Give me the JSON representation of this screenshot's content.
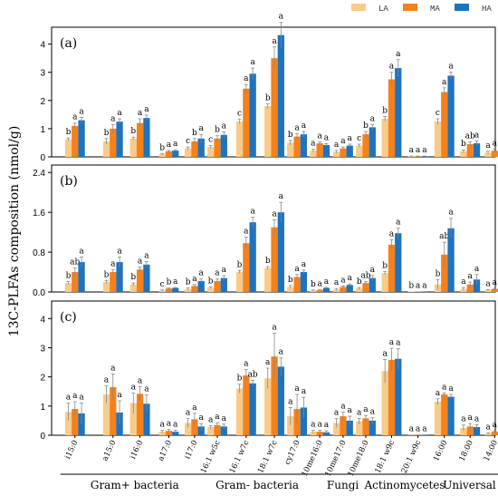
{
  "chart_data": {
    "type": "bar",
    "ylabel": "13C-PLFAs composition (nmol/g)",
    "categories": [
      "i15:0",
      "a15:0",
      "i16:0",
      "a17:0",
      "i17:0",
      "16:1 w5c",
      "16:1 w7c",
      "18:1 w7c",
      "cy17:0",
      "10me16:0",
      "10me17:0",
      "10me18:0",
      "18:1 w9c",
      "20:1 w9c",
      "16:00",
      "18:00",
      "14:00"
    ],
    "groups": [
      {
        "label": "Gram+ bacteria",
        "from": 0,
        "to": 4
      },
      {
        "label": "Gram- bacteria",
        "from": 5,
        "to": 8
      },
      {
        "label": "Fungi",
        "from": 9,
        "to": 11
      },
      {
        "label": "Actinomycetes",
        "from": 12,
        "to": 13
      },
      {
        "label": "Universal",
        "from": 14,
        "to": 16
      }
    ],
    "series": [
      {
        "name": "LA",
        "color": "#f8cb8a"
      },
      {
        "name": "MA",
        "color": "#f4811c"
      },
      {
        "name": "HA",
        "color": "#1e73be"
      }
    ],
    "panels": [
      {
        "label": "(a)",
        "ylim": [
          0,
          4.6
        ],
        "yticks": [
          0,
          1,
          2,
          3,
          4
        ],
        "tick_labels": [
          "0",
          "1",
          "2",
          "3",
          "4"
        ],
        "values": [
          [
            0.62,
            1.1,
            1.3
          ],
          [
            0.55,
            1.0,
            1.25
          ],
          [
            0.65,
            1.2,
            1.38
          ],
          [
            0.1,
            0.2,
            0.22
          ],
          [
            0.3,
            0.55,
            0.65
          ],
          [
            0.35,
            0.65,
            0.78
          ],
          [
            1.25,
            2.42,
            2.95
          ],
          [
            1.8,
            3.5,
            4.32
          ],
          [
            0.5,
            0.72,
            0.8
          ],
          [
            0.22,
            0.48,
            0.42
          ],
          [
            0.18,
            0.3,
            0.4
          ],
          [
            0.4,
            0.8,
            1.05
          ],
          [
            1.35,
            2.75,
            3.15
          ],
          [
            0.02,
            0.02,
            0.02
          ],
          [
            1.25,
            2.3,
            2.88
          ],
          [
            0.2,
            0.45,
            0.48
          ],
          [
            0.15,
            0.22,
            0.22
          ]
        ],
        "errors": [
          [
            0.05,
            0.1,
            0.1
          ],
          [
            0.1,
            0.15,
            0.1
          ],
          [
            0.05,
            0.15,
            0.1
          ],
          [
            0.02,
            0.03,
            0.03
          ],
          [
            0.05,
            0.1,
            0.15
          ],
          [
            0.05,
            0.1,
            0.1
          ],
          [
            0.08,
            0.15,
            0.2
          ],
          [
            0.08,
            0.4,
            0.45
          ],
          [
            0.08,
            0.1,
            0.1
          ],
          [
            0.05,
            0.05,
            0.05
          ],
          [
            0.05,
            0.05,
            0.05
          ],
          [
            0.05,
            0.1,
            0.1
          ],
          [
            0.08,
            0.25,
            0.3
          ],
          [
            0.01,
            0.01,
            0.01
          ],
          [
            0.1,
            0.15,
            0.12
          ],
          [
            0.05,
            0.08,
            0.08
          ],
          [
            0.05,
            0.05,
            0.05
          ]
        ],
        "letters": [
          [
            "b",
            "a",
            "a"
          ],
          [
            "b",
            "a",
            "a"
          ],
          [
            "b",
            "a",
            "a"
          ],
          [
            "b",
            "a",
            "a"
          ],
          [
            "c",
            "b",
            "a"
          ],
          [
            "c",
            "b",
            "a"
          ],
          [
            "c",
            "a",
            "a"
          ],
          [
            "b",
            "a",
            "a"
          ],
          [
            "b",
            "a",
            "a"
          ],
          [
            "a",
            "a",
            "a"
          ],
          [
            "a",
            "a",
            "a"
          ],
          [
            "c",
            "b",
            "a"
          ],
          [
            "b",
            "a",
            "a"
          ],
          [
            "a",
            "a",
            "a"
          ],
          [
            "c",
            "a",
            "a"
          ],
          [
            "b",
            "ab",
            "a"
          ],
          [
            "a",
            "a",
            "a"
          ]
        ]
      },
      {
        "label": "(b)",
        "ylim": [
          0,
          2.55
        ],
        "yticks": [
          0,
          0.8,
          1.6,
          2.4
        ],
        "tick_labels": [
          "0.0",
          "0.8",
          "1.6",
          "2.4"
        ],
        "values": [
          [
            0.18,
            0.4,
            0.6
          ],
          [
            0.2,
            0.4,
            0.6
          ],
          [
            0.15,
            0.45,
            0.55
          ],
          [
            0.03,
            0.07,
            0.08
          ],
          [
            0.06,
            0.12,
            0.22
          ],
          [
            0.08,
            0.22,
            0.28
          ],
          [
            0.4,
            0.98,
            1.4
          ],
          [
            0.48,
            1.3,
            1.6
          ],
          [
            0.1,
            0.3,
            0.4
          ],
          [
            0.03,
            0.04,
            0.08
          ],
          [
            0.05,
            0.1,
            0.14
          ],
          [
            0.07,
            0.18,
            0.28
          ],
          [
            0.38,
            0.95,
            1.18
          ],
          [
            0.01,
            0.01,
            0.01
          ],
          [
            0.15,
            0.75,
            1.28
          ],
          [
            0.06,
            0.15,
            0.25
          ],
          [
            0.04,
            0.06,
            0.06
          ]
        ],
        "errors": [
          [
            0.03,
            0.08,
            0.1
          ],
          [
            0.03,
            0.05,
            0.1
          ],
          [
            0.03,
            0.05,
            0.06
          ],
          [
            0.01,
            0.01,
            0.01
          ],
          [
            0.02,
            0.03,
            0.04
          ],
          [
            0.02,
            0.04,
            0.05
          ],
          [
            0.03,
            0.12,
            0.1
          ],
          [
            0.03,
            0.15,
            0.2
          ],
          [
            0.03,
            0.05,
            0.04
          ],
          [
            0.01,
            0.01,
            0.01
          ],
          [
            0.02,
            0.02,
            0.02
          ],
          [
            0.02,
            0.03,
            0.05
          ],
          [
            0.03,
            0.1,
            0.1
          ],
          [
            0.0,
            0.0,
            0.0
          ],
          [
            0.1,
            0.25,
            0.2
          ],
          [
            0.03,
            0.05,
            0.1
          ],
          [
            0.01,
            0.01,
            0.01
          ]
        ],
        "letters": [
          [
            "b",
            "ab",
            "a"
          ],
          [
            "b",
            "a",
            "a"
          ],
          [
            "b",
            "a",
            "a"
          ],
          [
            "c",
            "b",
            "a"
          ],
          [
            "b",
            "a",
            "a"
          ],
          [
            "b",
            "a",
            "a"
          ],
          [
            "b",
            "a",
            "a"
          ],
          [
            "b",
            "a",
            "a"
          ],
          [
            "b",
            "a",
            "a"
          ],
          [
            "b",
            "a",
            "a"
          ],
          [
            "a",
            "a",
            "a"
          ],
          [
            "b",
            "ab",
            "a"
          ],
          [
            "b",
            "a",
            "a"
          ],
          [
            "b",
            "a",
            "a"
          ],
          [
            "b",
            "ab",
            "a"
          ],
          [
            "a",
            "a",
            "a"
          ],
          [
            "a",
            "a",
            "a"
          ]
        ]
      },
      {
        "label": "(c)",
        "ylim": [
          0,
          4.6
        ],
        "yticks": [
          0,
          1,
          2,
          3,
          4
        ],
        "tick_labels": [
          "0",
          "1",
          "2",
          "3",
          "4"
        ],
        "values": [
          [
            0.8,
            0.9,
            0.75
          ],
          [
            1.4,
            1.65,
            0.78
          ],
          [
            1.1,
            1.42,
            1.08
          ],
          [
            0.12,
            0.15,
            0.12
          ],
          [
            0.42,
            0.55,
            0.3
          ],
          [
            0.28,
            0.35,
            0.3
          ],
          [
            1.6,
            2.05,
            1.78
          ],
          [
            1.95,
            2.7,
            2.35
          ],
          [
            0.65,
            0.9,
            0.95
          ],
          [
            0.12,
            0.12,
            0.1
          ],
          [
            0.42,
            0.65,
            0.5
          ],
          [
            0.48,
            0.58,
            0.5
          ],
          [
            2.2,
            2.58,
            2.62
          ],
          [
            0.01,
            0.01,
            0.01
          ],
          [
            1.15,
            1.4,
            1.32
          ],
          [
            0.25,
            0.3,
            0.28
          ],
          [
            0.05,
            0.12,
            0.12
          ]
        ],
        "errors": [
          [
            0.3,
            0.25,
            0.35
          ],
          [
            0.3,
            0.45,
            0.4
          ],
          [
            0.35,
            0.25,
            0.3
          ],
          [
            0.05,
            0.05,
            0.05
          ],
          [
            0.15,
            0.2,
            0.1
          ],
          [
            0.05,
            0.08,
            0.08
          ],
          [
            0.15,
            0.2,
            0.1
          ],
          [
            0.35,
            0.8,
            0.3
          ],
          [
            0.3,
            0.5,
            0.35
          ],
          [
            0.05,
            0.05,
            0.05
          ],
          [
            0.15,
            0.15,
            0.15
          ],
          [
            0.1,
            0.1,
            0.1
          ],
          [
            0.4,
            0.4,
            0.35
          ],
          [
            0.0,
            0.0,
            0.0
          ],
          [
            0.1,
            0.05,
            0.08
          ],
          [
            0.1,
            0.1,
            0.08
          ],
          [
            0.03,
            0.03,
            0.03
          ]
        ],
        "letters": [
          [
            "a",
            "a",
            "a"
          ],
          [
            "a",
            "a",
            "a"
          ],
          [
            "a",
            "a",
            "a"
          ],
          [
            "a",
            "a",
            "a"
          ],
          [
            "a",
            "a",
            "a"
          ],
          [
            "a",
            "a",
            "a"
          ],
          [
            "b",
            "a",
            "ab"
          ],
          [
            "a",
            "a",
            "a"
          ],
          [
            "a",
            "a",
            "a"
          ],
          [
            "a",
            "a",
            "a"
          ],
          [
            "a",
            "a",
            "a"
          ],
          [
            "a",
            "a",
            "a"
          ],
          [
            "a",
            "a",
            "a"
          ],
          [
            "a",
            "a",
            "a"
          ],
          [
            "a",
            "a",
            "a"
          ],
          [
            "a",
            "a",
            "a"
          ],
          [
            "a",
            "a",
            "a"
          ]
        ]
      }
    ]
  }
}
